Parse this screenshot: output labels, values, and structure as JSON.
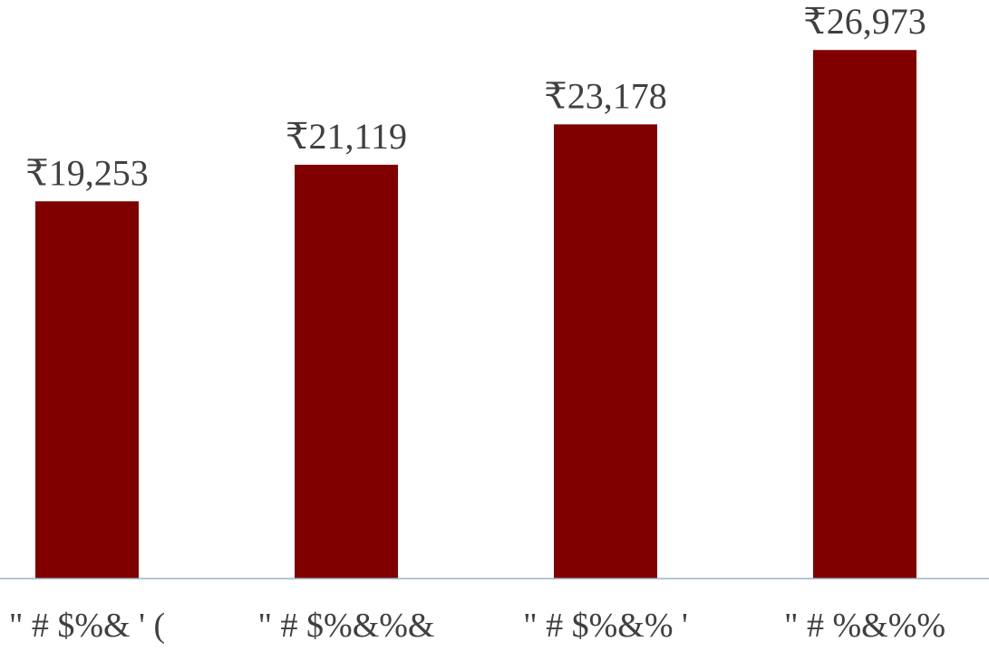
{
  "chart_data": {
    "type": "bar",
    "categories": [
      "\" # $%& ' (",
      "\" # $%&%&",
      "\" # $%&% '",
      "\" # %&%%"
    ],
    "values": [
      19253,
      21119,
      23178,
      26973
    ],
    "value_labels": [
      "₹19,253",
      "₹21,119",
      "₹23,178",
      "₹26,973"
    ],
    "title": "",
    "xlabel": "",
    "ylabel": "",
    "ylim": [
      0,
      28000
    ],
    "grid": false,
    "legend": "none",
    "colors": {
      "bar": "#800000",
      "axis": "#9bb3c4",
      "text": "#404040"
    }
  }
}
